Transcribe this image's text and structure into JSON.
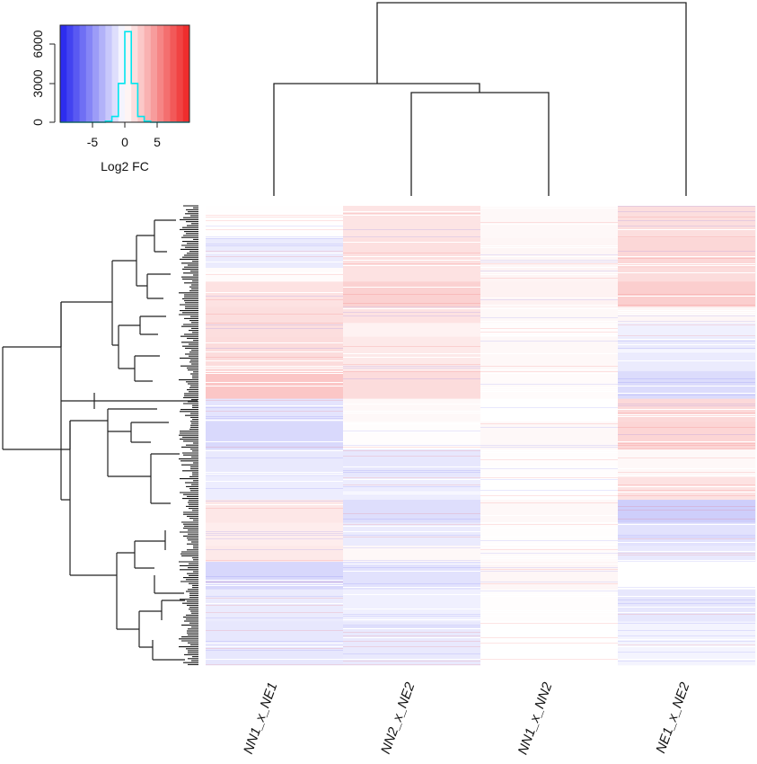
{
  "chart_data": {
    "type": "heatmap",
    "columns": [
      "NN1_x_NE1",
      "NN2_x_NE2",
      "NN1_x_NN2",
      "NE1_x_NE2"
    ],
    "color_key": {
      "xlabel": "Log2 FC",
      "x_ticks": [
        "-5",
        "0",
        "5"
      ],
      "y_ticks": [
        "0",
        "3000",
        "6000"
      ],
      "x_range": [
        -10,
        10
      ],
      "y_range": [
        0,
        7500
      ],
      "breaks": [
        -10,
        -9,
        -8,
        -7,
        -6,
        -5,
        -4,
        -3,
        -2,
        -1,
        0,
        1,
        2,
        3,
        4,
        5,
        6,
        7,
        8,
        9,
        10
      ],
      "histogram": {
        "x": [
          -10,
          -9,
          -8,
          -7,
          -6,
          -5,
          -4,
          -3,
          -2,
          -1,
          0,
          1,
          2,
          3,
          4,
          5,
          6,
          7,
          8,
          9
        ],
        "counts": [
          0,
          0,
          0,
          0,
          0,
          0,
          0,
          80,
          450,
          3000,
          7000,
          3000,
          450,
          80,
          0,
          0,
          0,
          0,
          0,
          0
        ]
      },
      "low_color": "#2222ee",
      "mid_color": "#ffffff",
      "high_color": "#ee2222",
      "histogram_color": "#00e5ee"
    },
    "blocks": [
      {
        "from": 0.0,
        "to": 0.07,
        "values": [
          0.05,
          1.2,
          0.3,
          1.5
        ]
      },
      {
        "from": 0.07,
        "to": 0.135,
        "values": [
          -0.9,
          1.4,
          0.4,
          1.8
        ]
      },
      {
        "from": 0.135,
        "to": 0.165,
        "values": [
          0.2,
          1.3,
          0.5,
          1.6
        ]
      },
      {
        "from": 0.165,
        "to": 0.22,
        "values": [
          1.3,
          2.1,
          0.6,
          2.2
        ]
      },
      {
        "from": 0.22,
        "to": 0.255,
        "values": [
          1.5,
          1.3,
          0.3,
          0.4
        ]
      },
      {
        "from": 0.255,
        "to": 0.285,
        "values": [
          1.5,
          0.6,
          0.1,
          -0.7
        ]
      },
      {
        "from": 0.285,
        "to": 0.36,
        "values": [
          1.6,
          1.0,
          0.3,
          -0.9
        ]
      },
      {
        "from": 0.36,
        "to": 0.42,
        "values": [
          2.6,
          1.6,
          0.2,
          -1.6
        ]
      },
      {
        "from": 0.42,
        "to": 0.47,
        "values": [
          -1.2,
          0.3,
          0.0,
          1.7
        ]
      },
      {
        "from": 0.47,
        "to": 0.53,
        "values": [
          -1.7,
          0.1,
          0.3,
          1.9
        ]
      },
      {
        "from": 0.53,
        "to": 0.59,
        "values": [
          -1.0,
          -1.1,
          0.1,
          0.3
        ]
      },
      {
        "from": 0.59,
        "to": 0.64,
        "values": [
          -0.8,
          -0.8,
          0.0,
          1.3
        ]
      },
      {
        "from": 0.64,
        "to": 0.69,
        "values": [
          1.1,
          -1.5,
          0.3,
          -2.2
        ]
      },
      {
        "from": 0.69,
        "to": 0.74,
        "values": [
          0.8,
          -0.9,
          0.1,
          -1.3
        ]
      },
      {
        "from": 0.74,
        "to": 0.775,
        "values": [
          1.0,
          0.3,
          0.2,
          -1.0
        ]
      },
      {
        "from": 0.775,
        "to": 0.835,
        "values": [
          -1.8,
          -1.3,
          0.4,
          0.0
        ]
      },
      {
        "from": 0.835,
        "to": 0.905,
        "values": [
          -0.9,
          -0.7,
          0.1,
          -1.1
        ]
      },
      {
        "from": 0.905,
        "to": 1.0,
        "values": [
          -1.1,
          -1.0,
          0.0,
          -0.5
        ]
      }
    ]
  }
}
